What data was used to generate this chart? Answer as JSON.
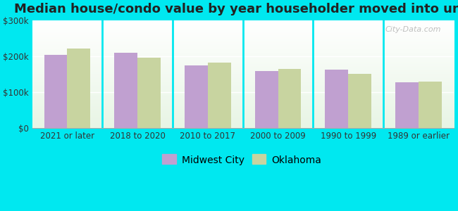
{
  "title": "Median house/condo value by year householder moved into unit",
  "categories": [
    "2021 or later",
    "2018 to 2020",
    "2010 to 2017",
    "2000 to 2009",
    "1990 to 1999",
    "1989 or earlier"
  ],
  "midwest_city": [
    205000,
    210000,
    175000,
    158000,
    163000,
    128000
  ],
  "oklahoma": [
    222000,
    196000,
    182000,
    165000,
    152000,
    130000
  ],
  "bar_color_city": "#c0a0d0",
  "bar_color_ok": "#c8d4a0",
  "background_outer": "#00e8f0",
  "ylim": [
    0,
    300000
  ],
  "yticks": [
    0,
    100000,
    200000,
    300000
  ],
  "ytick_labels": [
    "$0",
    "$100k",
    "$200k",
    "$300k"
  ],
  "legend_city": "Midwest City",
  "legend_ok": "Oklahoma",
  "watermark": "City-Data.com",
  "title_fontsize": 13,
  "tick_fontsize": 8.5,
  "legend_fontsize": 10
}
